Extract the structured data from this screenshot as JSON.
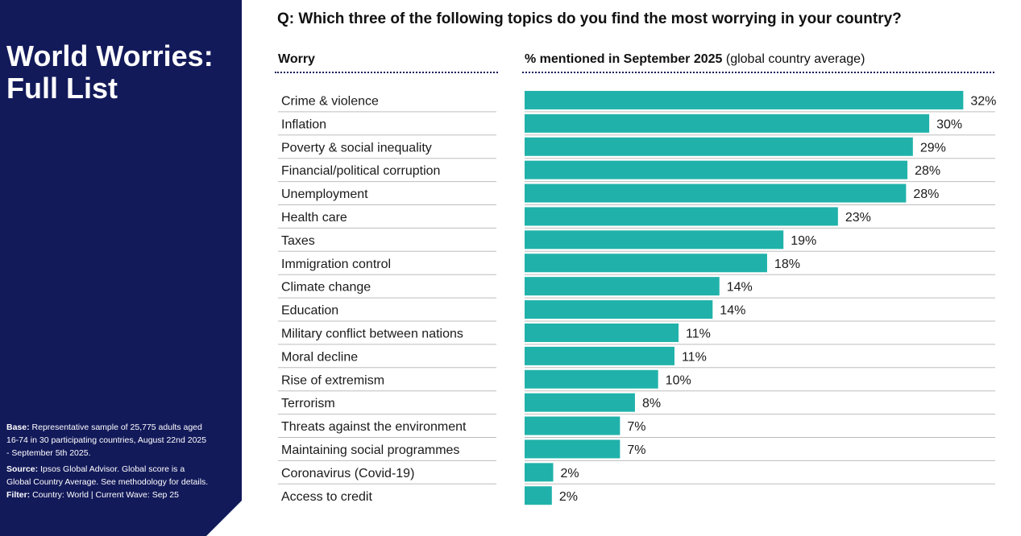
{
  "sidebar": {
    "title": "World Worries: Full List",
    "base_label": "Base:",
    "base_text": "Representative sample of 25,775 adults aged 16-74 in 30 participating countries, August 22nd 2025 - September 5th 2025.",
    "source_label": "Source:",
    "source_text": "Ipsos Global Advisor. Global score is a Global Country Average. See methodology for details.",
    "filter_label": "Filter:",
    "filter_text": "Country: World | Current Wave: Sep 25"
  },
  "colors": {
    "sidebar_bg": "#131a5a",
    "bar": "#20b2aa",
    "row_divider": "#bdbdbd"
  },
  "chart_data": {
    "type": "bar",
    "orientation": "horizontal",
    "title": "Q: Which three of the following topics do you find the most worrying in your country?",
    "category_header": "Worry",
    "value_header_bold": "% mentioned in September 2025",
    "value_header_rest": "(global country average)",
    "unit": "%",
    "xlim": [
      0,
      32
    ],
    "categories": [
      "Crime & violence",
      "Inflation",
      "Poverty & social inequality",
      "Financial/political corruption",
      "Unemployment",
      "Health care",
      "Taxes",
      "Immigration control",
      "Climate change",
      "Education",
      "Military conflict between nations",
      "Moral decline",
      "Rise of extremism",
      "Terrorism",
      "Threats against the environment",
      "Maintaining social programmes",
      "Coronavirus (Covid-19)",
      "Access to credit"
    ],
    "values": [
      32.2,
      29.7,
      28.5,
      28.1,
      28.0,
      23.0,
      19.0,
      17.8,
      14.3,
      13.8,
      11.3,
      11.0,
      9.8,
      8.1,
      7.0,
      7.0,
      2.1,
      2.0
    ],
    "labels": [
      "32%",
      "30%",
      "29%",
      "28%",
      "28%",
      "23%",
      "19%",
      "18%",
      "14%",
      "14%",
      "11%",
      "11%",
      "10%",
      "8%",
      "7%",
      "7%",
      "2%",
      "2%"
    ]
  }
}
